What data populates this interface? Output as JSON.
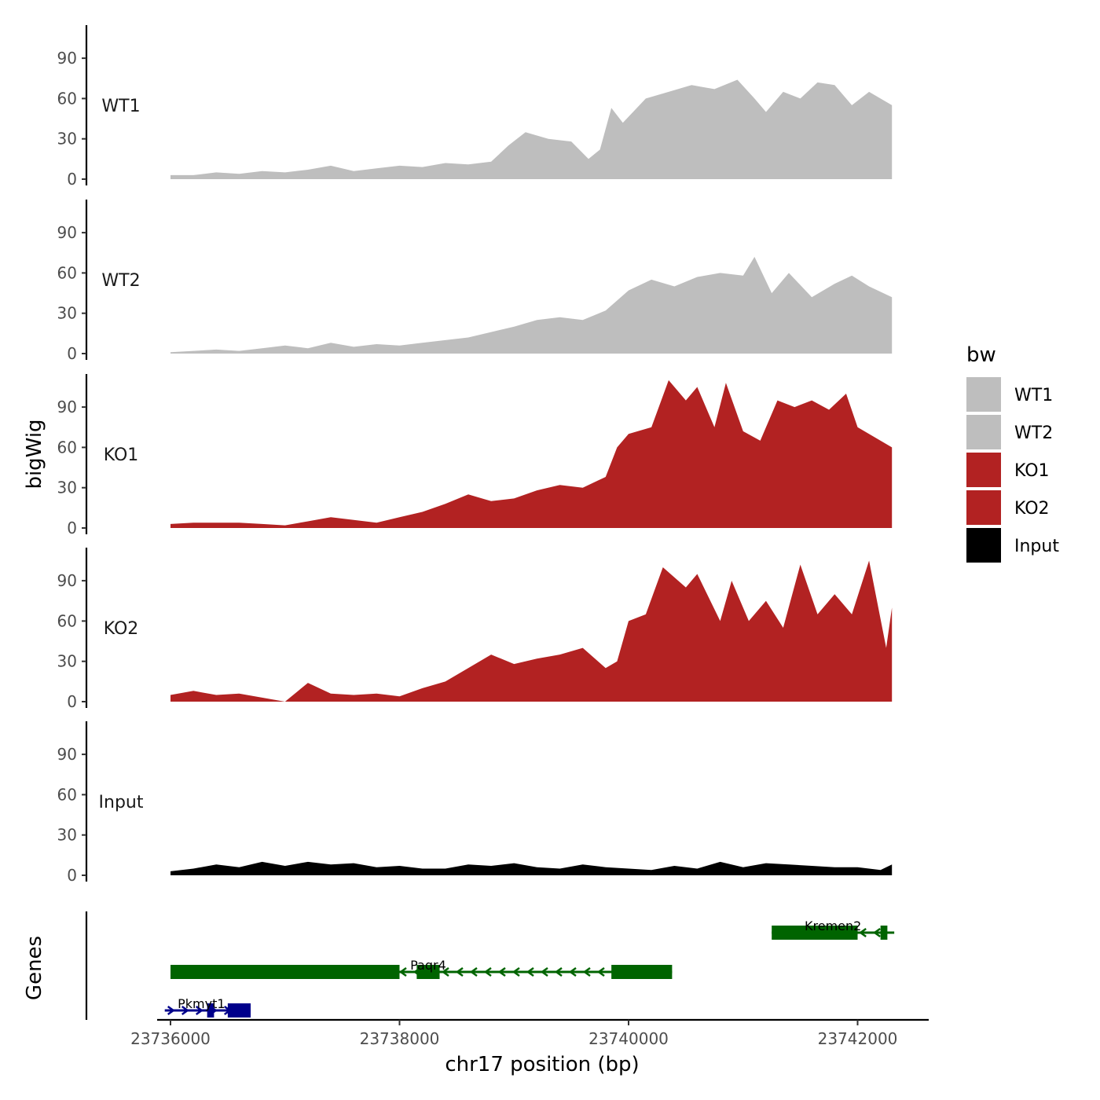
{
  "chart_data": {
    "type": "area",
    "xlabel": "chr17 position (bp)",
    "ylabel": "bigWig",
    "genes_label": "Genes",
    "xlim": [
      23735800,
      23742650
    ],
    "ylim": [
      0,
      110
    ],
    "x_ticks": [
      23736000,
      23738000,
      23740000,
      23742000
    ],
    "x_tick_labels": [
      "23736000",
      "23738000",
      "23740000",
      "23742000"
    ],
    "y_ticks": [
      0,
      30,
      60,
      90
    ],
    "y_tick_labels": [
      "0",
      "30",
      "60",
      "90"
    ],
    "legend": {
      "title": "bw",
      "items": [
        {
          "label": "WT1",
          "color": "#bebebe"
        },
        {
          "label": "WT2",
          "color": "#bebebe"
        },
        {
          "label": "KO1",
          "color": "#b22222"
        },
        {
          "label": "KO2",
          "color": "#b22222"
        },
        {
          "label": "Input",
          "color": "#000000"
        }
      ]
    },
    "series": [
      {
        "name": "WT1",
        "color": "#bebebe",
        "x": [
          23736000,
          23736200,
          23736400,
          23736600,
          23736800,
          23737000,
          23737200,
          23737400,
          23737600,
          23737800,
          23738000,
          23738200,
          23738400,
          23738600,
          23738800,
          23738950,
          23739100,
          23739300,
          23739500,
          23739650,
          23739750,
          23739850,
          23739950,
          23740150,
          23740350,
          23740550,
          23740750,
          23740950,
          23741100,
          23741200,
          23741350,
          23741500,
          23741650,
          23741800,
          23741950,
          23742100,
          23742300
        ],
        "y": [
          3,
          3,
          5,
          4,
          6,
          5,
          7,
          10,
          6,
          8,
          10,
          9,
          12,
          11,
          13,
          25,
          35,
          30,
          28,
          15,
          22,
          53,
          42,
          60,
          65,
          70,
          67,
          74,
          60,
          50,
          65,
          60,
          72,
          70,
          55,
          65,
          55
        ]
      },
      {
        "name": "WT2",
        "color": "#bebebe",
        "x": [
          23736000,
          23736200,
          23736400,
          23736600,
          23736800,
          23737000,
          23737200,
          23737400,
          23737600,
          23737800,
          23738000,
          23738200,
          23738400,
          23738600,
          23738800,
          23739000,
          23739200,
          23739400,
          23739600,
          23739800,
          23740000,
          23740200,
          23740400,
          23740600,
          23740800,
          23741000,
          23741100,
          23741250,
          23741400,
          23741600,
          23741800,
          23741950,
          23742100,
          23742300
        ],
        "y": [
          1,
          2,
          3,
          2,
          4,
          6,
          4,
          8,
          5,
          7,
          6,
          8,
          10,
          12,
          16,
          20,
          25,
          27,
          25,
          32,
          47,
          55,
          50,
          57,
          60,
          58,
          72,
          45,
          60,
          42,
          52,
          58,
          50,
          42
        ]
      },
      {
        "name": "KO1",
        "color": "#b22222",
        "x": [
          23736000,
          23736200,
          23736400,
          23736600,
          23736800,
          23737000,
          23737200,
          23737400,
          23737600,
          23737800,
          23738000,
          23738200,
          23738400,
          23738600,
          23738800,
          23739000,
          23739200,
          23739400,
          23739600,
          23739800,
          23739900,
          23740000,
          23740200,
          23740350,
          23740500,
          23740600,
          23740750,
          23740850,
          23741000,
          23741150,
          23741300,
          23741450,
          23741600,
          23741750,
          23741900,
          23742000,
          23742200,
          23742300
        ],
        "y": [
          3,
          4,
          4,
          4,
          3,
          2,
          5,
          8,
          6,
          4,
          8,
          12,
          18,
          25,
          20,
          22,
          28,
          32,
          30,
          38,
          60,
          70,
          75,
          110,
          95,
          105,
          75,
          108,
          72,
          65,
          95,
          90,
          95,
          88,
          100,
          75,
          65,
          60
        ]
      },
      {
        "name": "KO2",
        "color": "#b22222",
        "x": [
          23736000,
          23736200,
          23736400,
          23736600,
          23736800,
          23737000,
          23737200,
          23737400,
          23737600,
          23737800,
          23738000,
          23738200,
          23738400,
          23738600,
          23738800,
          23739000,
          23739200,
          23739400,
          23739600,
          23739800,
          23739900,
          23740000,
          23740150,
          23740300,
          23740500,
          23740600,
          23740800,
          23740900,
          23741050,
          23741200,
          23741350,
          23741500,
          23741650,
          23741800,
          23741950,
          23742100,
          23742250,
          23742300
        ],
        "y": [
          5,
          8,
          5,
          6,
          3,
          0,
          14,
          6,
          5,
          6,
          4,
          10,
          15,
          25,
          35,
          28,
          32,
          35,
          40,
          25,
          30,
          60,
          65,
          100,
          85,
          95,
          60,
          90,
          60,
          75,
          55,
          102,
          65,
          80,
          65,
          105,
          40,
          70
        ]
      },
      {
        "name": "Input",
        "color": "#000000",
        "x": [
          23736000,
          23736200,
          23736400,
          23736600,
          23736800,
          23737000,
          23737200,
          23737400,
          23737600,
          23737800,
          23738000,
          23738200,
          23738400,
          23738600,
          23738800,
          23739000,
          23739200,
          23739400,
          23739600,
          23739800,
          23740000,
          23740200,
          23740400,
          23740600,
          23740800,
          23741000,
          23741200,
          23741400,
          23741600,
          23741800,
          23742000,
          23742200,
          23742300
        ],
        "y": [
          3,
          5,
          8,
          6,
          10,
          7,
          10,
          8,
          9,
          6,
          7,
          5,
          5,
          8,
          7,
          9,
          6,
          5,
          8,
          6,
          5,
          4,
          7,
          5,
          10,
          6,
          9,
          8,
          7,
          6,
          6,
          4,
          8
        ]
      }
    ],
    "genes": [
      {
        "name": "Kremen2",
        "color": "#006400",
        "strand": "-",
        "start": 23741250,
        "end": 23742320,
        "exons": [
          [
            23741250,
            23742000
          ],
          [
            23742200,
            23742260
          ]
        ]
      },
      {
        "name": "Paqr4",
        "color": "#006400",
        "strand": "-",
        "start": 23736000,
        "end": 23740380,
        "exons": [
          [
            23736000,
            23738000
          ],
          [
            23738150,
            23738350
          ],
          [
            23739850,
            23740380
          ]
        ]
      },
      {
        "name": "Pkmyt1",
        "color": "#00008b",
        "strand": "+",
        "start": 23735950,
        "end": 23736700,
        "exons": [
          [
            23736320,
            23736380
          ],
          [
            23736500,
            23736700
          ]
        ]
      }
    ]
  }
}
